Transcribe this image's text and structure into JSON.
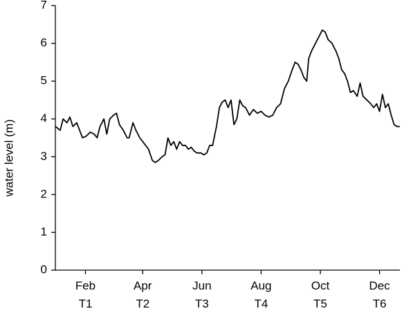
{
  "chart_data": {
    "type": "line",
    "y_label": "water level (m)",
    "x": [
      0,
      5,
      8,
      12,
      15,
      18,
      22,
      25,
      28,
      32,
      36,
      40,
      43,
      46,
      50,
      53,
      56,
      60,
      63,
      66,
      70,
      74,
      76,
      80,
      83,
      87,
      90,
      93,
      96,
      100,
      103,
      106,
      110,
      113,
      116,
      119,
      122,
      125,
      128,
      131,
      134,
      137,
      140,
      143,
      146,
      150,
      153,
      156,
      159,
      162,
      166,
      169,
      172,
      175,
      178,
      181,
      184,
      187,
      190,
      193,
      196,
      200,
      204,
      208,
      212,
      216,
      220,
      224,
      228,
      232,
      236,
      240,
      244,
      247,
      250,
      253,
      256,
      259,
      261,
      264,
      268,
      272,
      275,
      278,
      281,
      285,
      289,
      292,
      295,
      298,
      301,
      304,
      307,
      311,
      314,
      317,
      321,
      325,
      328,
      331,
      334,
      337,
      340,
      343,
      346,
      349,
      352,
      355
    ],
    "series": [
      {
        "name": "water level",
        "color": "#000000",
        "values": [
          3.8,
          3.7,
          4.0,
          3.9,
          4.05,
          3.8,
          3.9,
          3.7,
          3.5,
          3.55,
          3.65,
          3.6,
          3.5,
          3.8,
          4.0,
          3.6,
          4.0,
          4.1,
          4.15,
          3.85,
          3.7,
          3.5,
          3.5,
          3.9,
          3.7,
          3.5,
          3.4,
          3.3,
          3.2,
          2.9,
          2.85,
          2.9,
          3.0,
          3.05,
          3.5,
          3.3,
          3.4,
          3.2,
          3.4,
          3.3,
          3.3,
          3.2,
          3.25,
          3.15,
          3.1,
          3.1,
          3.05,
          3.1,
          3.3,
          3.3,
          3.8,
          4.3,
          4.45,
          4.5,
          4.3,
          4.5,
          3.85,
          4.0,
          4.5,
          4.35,
          4.3,
          4.1,
          4.25,
          4.15,
          4.2,
          4.1,
          4.05,
          4.1,
          4.3,
          4.4,
          4.8,
          5.0,
          5.3,
          5.5,
          5.45,
          5.3,
          5.1,
          5.0,
          5.6,
          5.8,
          6.0,
          6.2,
          6.35,
          6.3,
          6.1,
          6.0,
          5.8,
          5.6,
          5.3,
          5.2,
          5.0,
          4.7,
          4.75,
          4.6,
          4.95,
          4.6,
          4.5,
          4.4,
          4.3,
          4.4,
          4.2,
          4.65,
          4.3,
          4.4,
          4.1,
          3.85,
          3.8,
          3.8
        ]
      }
    ],
    "xlim": [
      0,
      355
    ],
    "xticks": [
      {
        "value": 31,
        "label": "Feb T1"
      },
      {
        "value": 90,
        "label": "Apr T2"
      },
      {
        "value": 151,
        "label": "Jun T3"
      },
      {
        "value": 212,
        "label": "Aug T4"
      },
      {
        "value": 273,
        "label": "Oct T5"
      },
      {
        "value": 334,
        "label": "Dec T6"
      }
    ],
    "ylim": [
      0,
      7
    ],
    "yticks": [
      0,
      1,
      2,
      3,
      4,
      5,
      6,
      7
    ],
    "grid": false
  }
}
